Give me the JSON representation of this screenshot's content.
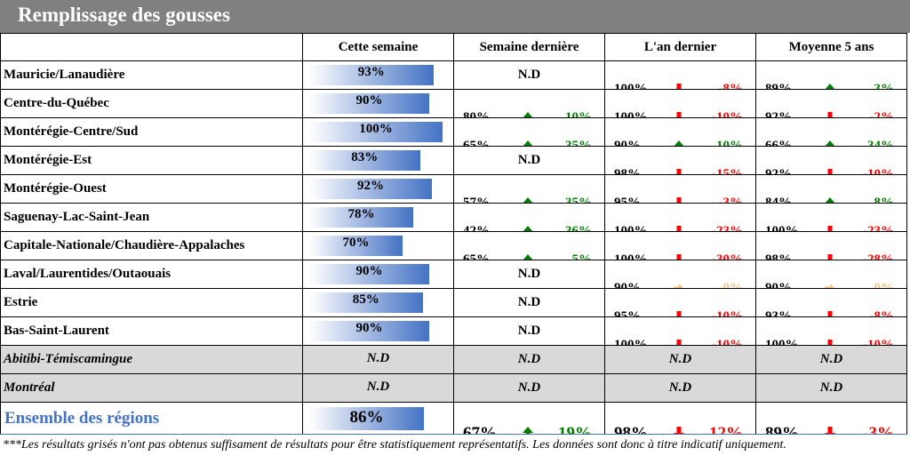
{
  "title": "Remplissage des gousses",
  "headers": [
    "",
    "Cette semaine",
    "Semaine dernière",
    "L'an dernier",
    "Moyenne 5 ans"
  ],
  "colors": {
    "up": "#008000",
    "down": "#ff0000",
    "flat": "#f2c47f",
    "bar": "#4472c4",
    "grey": "#d9d9d9",
    "total_label": "#4472c4"
  },
  "chart_data": {
    "type": "table",
    "rows": [
      {
        "region": "Mauricie/Lanaudière",
        "this_week": 93,
        "this_week_label": "93%",
        "grey": false,
        "last_week": null,
        "last_year": {
          "value": "100%",
          "diff": "-8%",
          "trend": "down"
        },
        "five_year": {
          "value": "89%",
          "diff": "3%",
          "trend": "up"
        }
      },
      {
        "region": "Centre-du-Québec",
        "this_week": 90,
        "this_week_label": "90%",
        "grey": false,
        "last_week": {
          "value": "80%",
          "diff": "10%",
          "trend": "up"
        },
        "last_year": {
          "value": "100%",
          "diff": "-10%",
          "trend": "down"
        },
        "five_year": {
          "value": "92%",
          "diff": "-2%",
          "trend": "down"
        }
      },
      {
        "region": "Montérégie-Centre/Sud",
        "this_week": 100,
        "this_week_label": "100%",
        "grey": false,
        "last_week": {
          "value": "65%",
          "diff": "35%",
          "trend": "up"
        },
        "last_year": {
          "value": "90%",
          "diff": "10%",
          "trend": "up"
        },
        "five_year": {
          "value": "66%",
          "diff": "34%",
          "trend": "up"
        }
      },
      {
        "region": "Montérégie-Est",
        "this_week": 83,
        "this_week_label": "83%",
        "grey": false,
        "last_week": null,
        "last_year": {
          "value": "98%",
          "diff": "-15%",
          "trend": "down"
        },
        "five_year": {
          "value": "92%",
          "diff": "-10%",
          "trend": "down"
        }
      },
      {
        "region": "Montérégie-Ouest",
        "this_week": 92,
        "this_week_label": "92%",
        "grey": false,
        "last_week": {
          "value": "57%",
          "diff": "35%",
          "trend": "up"
        },
        "last_year": {
          "value": "95%",
          "diff": "-3%",
          "trend": "down"
        },
        "five_year": {
          "value": "84%",
          "diff": "8%",
          "trend": "up"
        }
      },
      {
        "region": "Saguenay-Lac-Saint-Jean",
        "this_week": 78,
        "this_week_label": "78%",
        "grey": false,
        "last_week": {
          "value": "42%",
          "diff": "36%",
          "trend": "up"
        },
        "last_year": {
          "value": "100%",
          "diff": "-23%",
          "trend": "down"
        },
        "five_year": {
          "value": "100%",
          "diff": "-23%",
          "trend": "down"
        }
      },
      {
        "region": "Capitale-Nationale/Chaudière-Appalaches",
        "this_week": 70,
        "this_week_label": "70%",
        "grey": false,
        "last_week": {
          "value": "65%",
          "diff": "5%",
          "trend": "up"
        },
        "last_year": {
          "value": "100%",
          "diff": "-30%",
          "trend": "down"
        },
        "five_year": {
          "value": "98%",
          "diff": "-28%",
          "trend": "down"
        }
      },
      {
        "region": "Laval/Laurentides/Outaouais",
        "this_week": 90,
        "this_week_label": "90%",
        "grey": false,
        "last_week": null,
        "last_year": {
          "value": "90%",
          "diff": "0%",
          "trend": "flat"
        },
        "five_year": {
          "value": "90%",
          "diff": "0%",
          "trend": "flat"
        }
      },
      {
        "region": "Estrie",
        "this_week": 85,
        "this_week_label": "85%",
        "grey": false,
        "last_week": null,
        "last_year": {
          "value": "95%",
          "diff": "-10%",
          "trend": "down"
        },
        "five_year": {
          "value": "93%",
          "diff": "-8%",
          "trend": "down"
        }
      },
      {
        "region": "Bas-Saint-Laurent",
        "this_week": 90,
        "this_week_label": "90%",
        "grey": false,
        "last_week": null,
        "last_year": {
          "value": "100%",
          "diff": "-10%",
          "trend": "down"
        },
        "five_year": {
          "value": "100%",
          "diff": "-10%",
          "trend": "down"
        }
      },
      {
        "region": "Abitibi-Témiscamingue",
        "this_week": null,
        "this_week_label": "N.D",
        "grey": true,
        "last_week": null,
        "last_year": null,
        "five_year": null
      },
      {
        "region": "Montréal",
        "this_week": null,
        "this_week_label": "N.D",
        "grey": true,
        "last_week": null,
        "last_year": null,
        "five_year": null
      }
    ],
    "total": {
      "region": "Ensemble des régions",
      "this_week": 86,
      "this_week_label": "86%",
      "last_week": {
        "value": "67%",
        "diff": "19%",
        "trend": "up"
      },
      "last_year": {
        "value": "98%",
        "diff": "-12%",
        "trend": "down"
      },
      "five_year": {
        "value": "89%",
        "diff": "-3%",
        "trend": "down"
      }
    },
    "na_label": "N.D",
    "bar_max": 100
  },
  "footnote": "***Les résultats grisés n'ont pas obtenus suffisament de résultats pour être statistiquement représentatifs. Les données sont donc à titre indicatif uniquement."
}
